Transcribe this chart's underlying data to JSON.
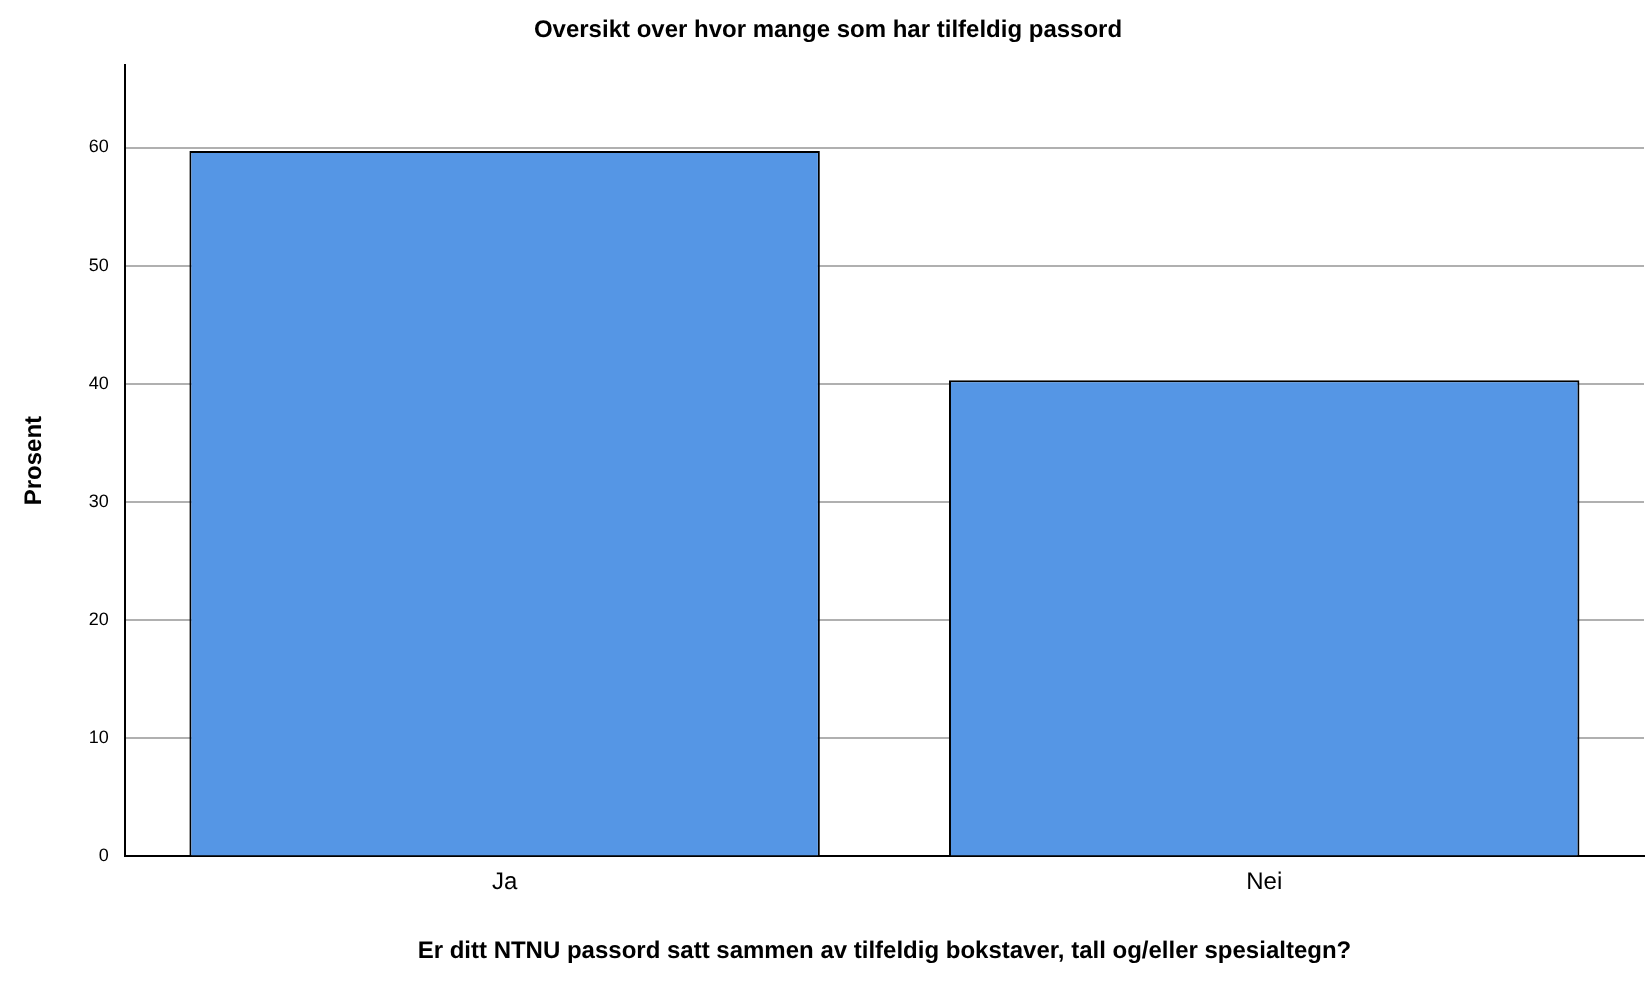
{
  "chart_data": {
    "type": "bar",
    "title": "Oversikt over hvor mange som har tilfeldig passord",
    "xlabel": "Er ditt NTNU passord satt sammen av tilfeldig bokstaver, tall og/eller spesialtegn?",
    "ylabel": "Prosent",
    "categories": [
      "Ja",
      "Nei"
    ],
    "values": [
      59.7,
      40.3
    ],
    "color": "#5596e5",
    "ylim": [
      0,
      67
    ],
    "yticks": [
      0,
      10,
      20,
      30,
      40,
      50,
      60
    ],
    "grid": "y"
  }
}
